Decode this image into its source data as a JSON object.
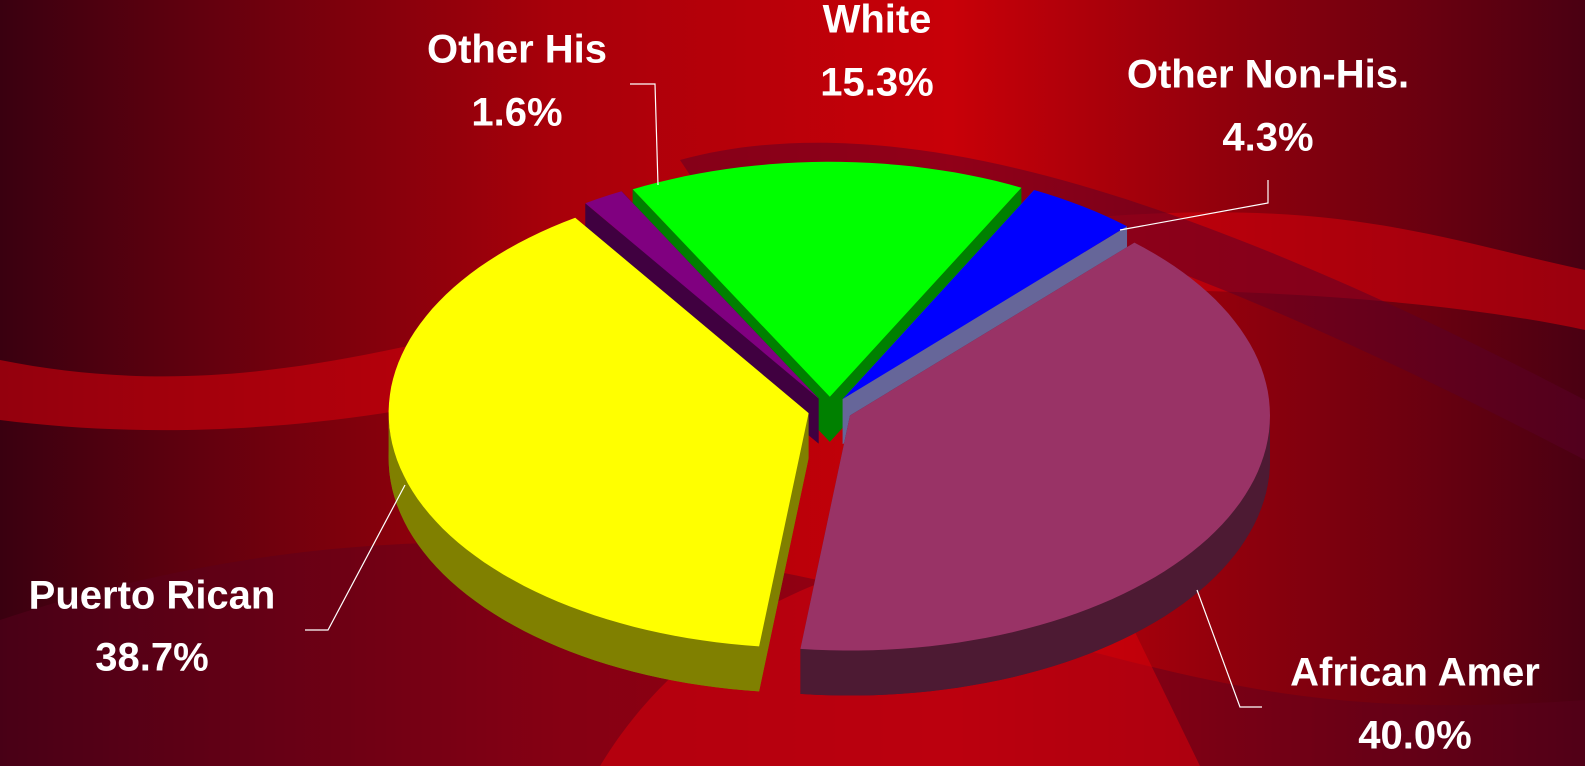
{
  "chart_data": {
    "type": "pie",
    "categories": [
      "White",
      "Other Non-His.",
      "African Amer",
      "Puerto Rican",
      "Other His"
    ],
    "values": [
      15.3,
      4.3,
      40.0,
      38.7,
      1.6
    ],
    "value_labels": [
      "15.3%",
      "4.3%",
      "40.0%",
      "38.7%",
      "1.6%"
    ],
    "colors": [
      "#00ff00",
      "#0000ff",
      "#993366",
      "#ffff00",
      "#800080"
    ],
    "side_colors": [
      "#008000",
      "#666699",
      "#4d1a33",
      "#808000",
      "#400040"
    ],
    "exploded": true,
    "three_d": true
  }
}
